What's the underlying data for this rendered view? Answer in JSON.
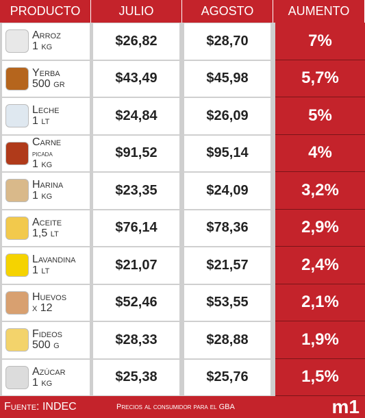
{
  "header": {
    "columns": [
      "PRODUCTO",
      "JULIO",
      "AGOSTO",
      "AUMENTO"
    ]
  },
  "table": {
    "rows": [
      {
        "product": [
          "Arroz",
          "1 kg"
        ],
        "julio": "$26,82",
        "agosto": "$28,70",
        "aumento": "7%"
      },
      {
        "product": [
          "Yerba",
          "500 gr"
        ],
        "julio": "$43,49",
        "agosto": "$45,98",
        "aumento": "5,7%"
      },
      {
        "product": [
          "Leche",
          "1 lt"
        ],
        "julio": "$24,84",
        "agosto": "$26,09",
        "aumento": "5%"
      },
      {
        "product": [
          "Carne",
          "picada",
          "1 kg"
        ],
        "julio": "$91,52",
        "agosto": "$95,14",
        "aumento": "4%"
      },
      {
        "product": [
          "Harina",
          "1 kg"
        ],
        "julio": "$23,35",
        "agosto": "$24,09",
        "aumento": "3,2%"
      },
      {
        "product": [
          "Aceite",
          "1,5 lt"
        ],
        "julio": "$76,14",
        "agosto": "$78,36",
        "aumento": "2,9%"
      },
      {
        "product": [
          "Lavandina",
          "1 lt"
        ],
        "julio": "$21,07",
        "agosto": "$21,57",
        "aumento": "2,4%"
      },
      {
        "product": [
          "Huevos",
          "x 12"
        ],
        "julio": "$52,46",
        "agosto": "$53,55",
        "aumento": "2,1%"
      },
      {
        "product": [
          "Fideos",
          "500 g"
        ],
        "julio": "$28,33",
        "agosto": "$28,88",
        "aumento": "1,9%"
      },
      {
        "product": [
          "Azúcar",
          "1 kg"
        ],
        "julio": "$25,38",
        "agosto": "$25,76",
        "aumento": "1,5%"
      }
    ]
  },
  "footer": {
    "source": "Fuente: INDEC",
    "note": "Precios al consumidor para el GBA",
    "logo": "m1"
  }
}
